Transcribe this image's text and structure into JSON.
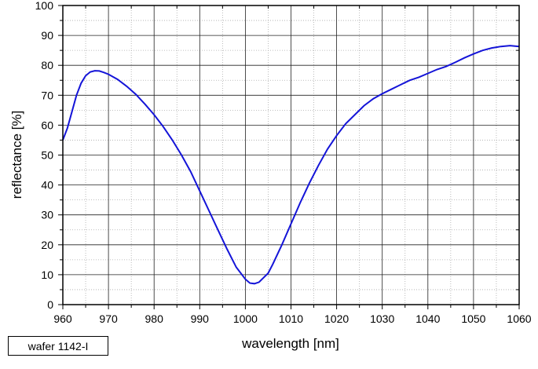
{
  "chart_data": {
    "type": "line",
    "title": "",
    "xlabel": "wavelength [nm]",
    "ylabel": "reflectance [%]",
    "xlim": [
      960,
      1060
    ],
    "ylim": [
      0,
      100
    ],
    "xticks": [
      960,
      970,
      980,
      990,
      1000,
      1010,
      1020,
      1030,
      1040,
      1050,
      1060
    ],
    "yticks": [
      0,
      10,
      20,
      30,
      40,
      50,
      60,
      70,
      80,
      90,
      100
    ],
    "grid": true,
    "legend_label": "wafer 1142-I",
    "legend_placement": "bottom-left",
    "series": [
      {
        "name": "wafer 1142-I",
        "color": "#1414d8",
        "x": [
          960,
          961,
          962,
          963,
          964,
          965,
          966,
          967,
          968,
          969,
          970,
          972,
          974,
          976,
          978,
          980,
          982,
          984,
          986,
          988,
          990,
          992,
          994,
          996,
          998,
          1000,
          1001,
          1002,
          1003,
          1004,
          1005,
          1006,
          1008,
          1010,
          1012,
          1014,
          1016,
          1018,
          1020,
          1022,
          1024,
          1026,
          1028,
          1030,
          1032,
          1034,
          1036,
          1038,
          1040,
          1042,
          1044,
          1046,
          1048,
          1050,
          1052,
          1054,
          1056,
          1058,
          1060
        ],
        "y": [
          55,
          59,
          64.5,
          70,
          74,
          76.5,
          77.8,
          78.2,
          78.1,
          77.6,
          77,
          75.3,
          73,
          70.3,
          67,
          63.5,
          59.5,
          55,
          50,
          44.5,
          38,
          31.5,
          25,
          18.5,
          12.5,
          8.5,
          7.2,
          7,
          7.5,
          9,
          10.5,
          13.5,
          20,
          27,
          34,
          40.5,
          46.5,
          52,
          56.5,
          60.5,
          63.5,
          66.5,
          68.8,
          70.5,
          72,
          73.5,
          75,
          76,
          77.3,
          78.6,
          79.6,
          81,
          82.5,
          83.8,
          85,
          85.8,
          86.3,
          86.6,
          86.3
        ]
      }
    ]
  }
}
